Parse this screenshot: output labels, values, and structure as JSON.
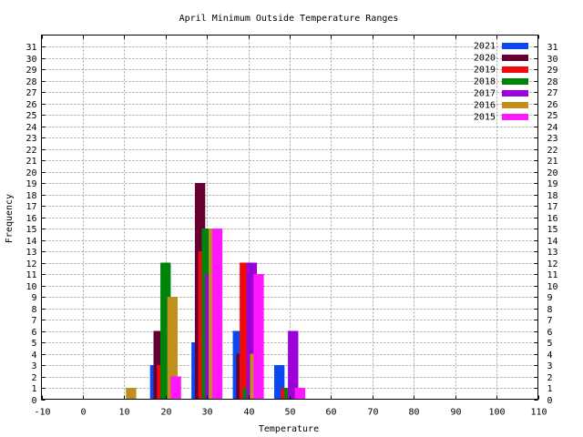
{
  "chart_data": {
    "type": "bar",
    "title": "April Minimum Outside Temperature Ranges",
    "xlabel": "Temperature",
    "ylabel": "Frequency",
    "xlim": [
      -10,
      110
    ],
    "ylim": [
      0,
      32
    ],
    "xticks": [
      -10,
      0,
      10,
      20,
      30,
      40,
      50,
      60,
      70,
      80,
      90,
      100,
      110
    ],
    "yticks": [
      0,
      1,
      2,
      3,
      4,
      5,
      6,
      7,
      8,
      9,
      10,
      11,
      12,
      13,
      14,
      15,
      16,
      17,
      18,
      19,
      20,
      21,
      22,
      23,
      24,
      25,
      26,
      27,
      28,
      29,
      30,
      31
    ],
    "grid": true,
    "legend_position": "top-right",
    "bin_width": 10,
    "series": [
      {
        "name": "2021",
        "color": "#0b48f2",
        "points": [
          [
            20,
            3
          ],
          [
            30,
            5
          ],
          [
            40,
            6
          ],
          [
            50,
            3
          ]
        ]
      },
      {
        "name": "2020",
        "color": "#660033",
        "points": [
          [
            20,
            6
          ],
          [
            30,
            19
          ],
          [
            40,
            4
          ]
        ]
      },
      {
        "name": "2019",
        "color": "#f20a0a",
        "points": [
          [
            20,
            3
          ],
          [
            30,
            13
          ],
          [
            40,
            12
          ],
          [
            50,
            1
          ]
        ]
      },
      {
        "name": "2018",
        "color": "#00830a",
        "points": [
          [
            20,
            12
          ],
          [
            30,
            15
          ],
          [
            40,
            1
          ],
          [
            50,
            1
          ]
        ]
      },
      {
        "name": "2017",
        "color": "#9c00d8",
        "points": [
          [
            30,
            11
          ],
          [
            40,
            12
          ],
          [
            50,
            6
          ]
        ]
      },
      {
        "name": "2016",
        "color": "#c0901a",
        "points": [
          [
            10,
            1
          ],
          [
            20,
            9
          ],
          [
            30,
            15
          ],
          [
            40,
            4
          ]
        ]
      },
      {
        "name": "2015",
        "color": "#ff18ff",
        "points": [
          [
            20,
            2
          ],
          [
            30,
            15
          ],
          [
            40,
            11
          ],
          [
            50,
            1
          ]
        ]
      }
    ]
  }
}
